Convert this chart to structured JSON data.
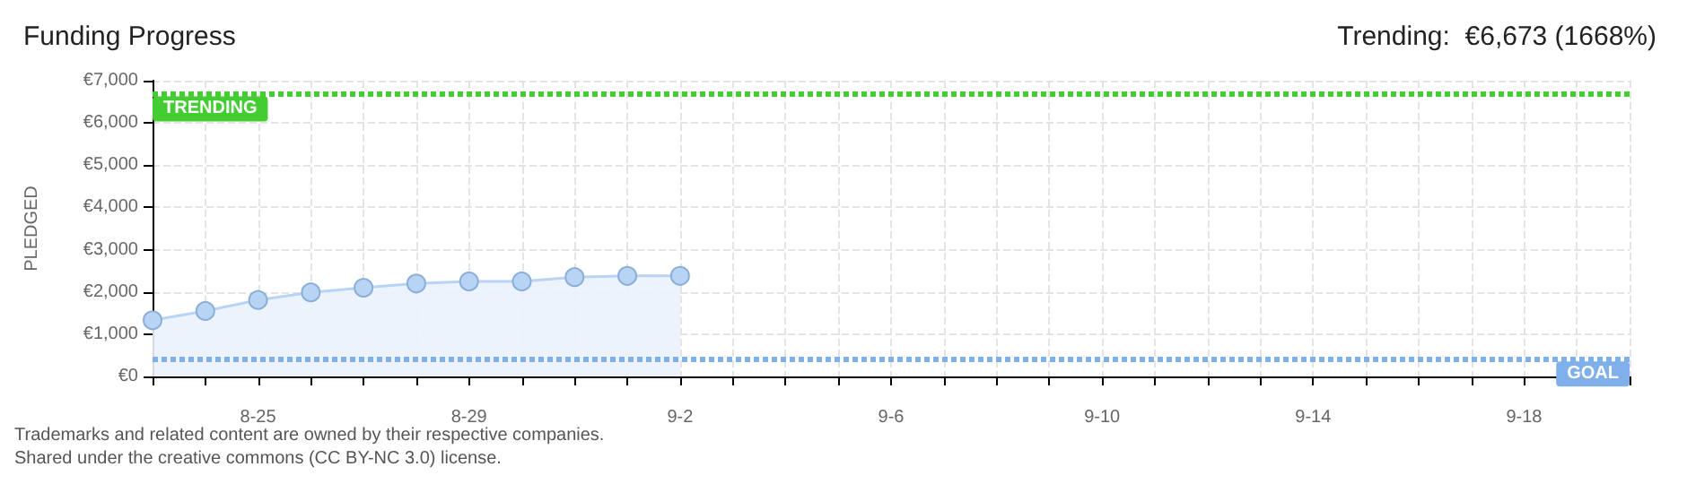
{
  "chart_data": {
    "type": "area",
    "title": "Funding Progress",
    "subtitle": "Trending:  €6,673 (1668%)",
    "ylabel": "PLEDGED",
    "categories": [
      null,
      null,
      "8-25",
      null,
      null,
      null,
      "8-29",
      null,
      null,
      null,
      "9-2",
      null,
      null,
      null,
      "9-6",
      null,
      null,
      null,
      "9-10",
      null,
      null,
      null,
      "9-14",
      null,
      null,
      null,
      "9-18",
      null,
      null
    ],
    "series": [
      {
        "color": "#b8d4f5",
        "values": [
          1330,
          1550,
          1810,
          1990,
          2100,
          2200,
          2250,
          2250,
          2350,
          2380,
          2380,
          null,
          null,
          null,
          null,
          null,
          null,
          null,
          null,
          null,
          null,
          null,
          null,
          null,
          null,
          null,
          null,
          null,
          null
        ]
      }
    ],
    "ylim": [
      0,
      7000
    ],
    "yticks": [
      {
        "value": 0,
        "label": "€0"
      },
      {
        "value": 1000,
        "label": "€1,000"
      },
      {
        "value": 2000,
        "label": "€2,000"
      },
      {
        "value": 3000,
        "label": "€3,000"
      },
      {
        "value": 4000,
        "label": "€4,000"
      },
      {
        "value": 5000,
        "label": "€5,000"
      },
      {
        "value": 6000,
        "label": "€6,000"
      },
      {
        "value": 7000,
        "label": "€7,000"
      }
    ],
    "grid": true,
    "marker": "circle",
    "ref_lines": [
      {
        "axis": "y",
        "value": 6673,
        "label": "TRENDING",
        "color": "#44cc33",
        "line_style": "dotted"
      },
      {
        "axis": "y",
        "value": 400,
        "label": "GOAL",
        "color": "#7fb0ea",
        "line_style": "dotted"
      }
    ],
    "annotations": [
      "Trademarks and related content are owned by their respective companies.",
      "Shared under the creative commons (CC BY-NC 3.0) license."
    ]
  }
}
